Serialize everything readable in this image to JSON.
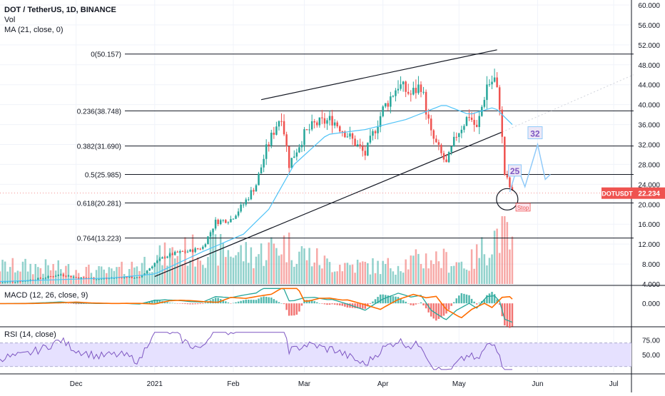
{
  "header": {
    "title": "DOT / TetherUS, 1D, BINANCE",
    "volume_label": "Vol",
    "ma_label": "MA (21, close, 0)"
  },
  "macd_label": "MACD (12, 26, close, 9)",
  "rsi_label": "RSI (14, close)",
  "price_tag": {
    "symbol": "DOTUSDT",
    "price": "22.234"
  },
  "colors": {
    "up": "#26a69a",
    "down": "#ef5350",
    "ma": "#4fc3f7",
    "macd": "#26a69a",
    "signal": "#ff6d00",
    "rsi": "#7e57c2",
    "rsi_band": "#e6e1ff",
    "projection": "#90caf9",
    "stop": "#ef5350"
  },
  "chart_data": [
    {
      "type": "candlestick",
      "title": "DOT / TetherUS, 1D, BINANCE",
      "y_axis_ticks": [
        "60.000",
        "56.000",
        "52.000",
        "48.000",
        "44.000",
        "40.000",
        "36.000",
        "32.000",
        "28.000",
        "24.000",
        "20.000",
        "16.000",
        "12.000",
        "8.000",
        "4.000"
      ],
      "ylim": [
        4,
        60
      ],
      "x_axis_ticks": [
        "Dec",
        "2021",
        "Feb",
        "Mar",
        "Apr",
        "May",
        "Jun",
        "Jul"
      ],
      "x_tick_dates": [
        "2020-12-01",
        "2021-01-01",
        "2021-02-01",
        "2021-03-01",
        "2021-04-01",
        "2021-05-01",
        "2021-06-01",
        "2021-07-01"
      ],
      "xlim": [
        "2020-11-01",
        "2021-07-08"
      ],
      "fib_levels": [
        {
          "label": "0(50.157)",
          "value": 50.157
        },
        {
          "label": "0.236(38.748)",
          "value": 38.748
        },
        {
          "label": "0.382(31.690)",
          "value": 31.69
        },
        {
          "label": "0.5(25.985)",
          "value": 25.985
        },
        {
          "label": "0.618(20.281)",
          "value": 20.281
        },
        {
          "label": "0.764(13.223)",
          "value": 13.223
        }
      ],
      "close_series": [
        [
          "2020-11-01",
          4.3
        ],
        [
          "2020-11-10",
          4.6
        ],
        [
          "2020-11-18",
          5.2
        ],
        [
          "2020-11-25",
          5.9
        ],
        [
          "2020-12-01",
          5.3
        ],
        [
          "2020-12-10",
          5.0
        ],
        [
          "2020-12-20",
          5.4
        ],
        [
          "2020-12-26",
          5.2
        ],
        [
          "2021-01-01",
          8.2
        ],
        [
          "2021-01-05",
          9.5
        ],
        [
          "2021-01-10",
          10.3
        ],
        [
          "2021-01-15",
          10.6
        ],
        [
          "2021-01-20",
          11.4
        ],
        [
          "2021-01-25",
          16.5
        ],
        [
          "2021-01-31",
          17.0
        ],
        [
          "2021-02-05",
          20.0
        ],
        [
          "2021-02-10",
          24.0
        ],
        [
          "2021-02-14",
          31.0
        ],
        [
          "2021-02-18",
          36.0
        ],
        [
          "2021-02-20",
          38.0
        ],
        [
          "2021-02-23",
          28.0
        ],
        [
          "2021-03-01",
          34.0
        ],
        [
          "2021-03-05",
          36.0
        ],
        [
          "2021-03-12",
          37.0
        ],
        [
          "2021-03-18",
          34.0
        ],
        [
          "2021-03-25",
          30.0
        ],
        [
          "2021-03-28",
          34.0
        ],
        [
          "2021-04-01",
          39.0
        ],
        [
          "2021-04-07",
          44.0
        ],
        [
          "2021-04-12",
          42.0
        ],
        [
          "2021-04-16",
          44.0
        ],
        [
          "2021-04-20",
          34.0
        ],
        [
          "2021-04-26",
          28.0
        ],
        [
          "2021-04-30",
          34.0
        ],
        [
          "2021-05-05",
          38.0
        ],
        [
          "2021-05-08",
          35.0
        ],
        [
          "2021-05-12",
          44.0
        ],
        [
          "2021-05-15",
          45.0
        ],
        [
          "2021-05-17",
          40.0
        ],
        [
          "2021-05-19",
          26.0
        ],
        [
          "2021-05-22",
          22.234
        ]
      ],
      "ma21_series": [
        [
          "2020-11-01",
          4.5
        ],
        [
          "2020-12-15",
          5.2
        ],
        [
          "2021-01-01",
          6.0
        ],
        [
          "2021-01-20",
          10.5
        ],
        [
          "2021-02-05",
          14.0
        ],
        [
          "2021-02-15",
          19.0
        ],
        [
          "2021-02-25",
          28.0
        ],
        [
          "2021-03-10",
          34.0
        ],
        [
          "2021-03-25",
          35.0
        ],
        [
          "2021-04-10",
          37.0
        ],
        [
          "2021-04-25",
          40.0
        ],
        [
          "2021-05-05",
          38.0
        ],
        [
          "2021-05-15",
          39.5
        ],
        [
          "2021-05-22",
          36.0
        ]
      ],
      "volume_series": [
        [
          "2020-11-15",
          0.3
        ],
        [
          "2020-12-15",
          0.2
        ],
        [
          "2021-01-10",
          0.55
        ],
        [
          "2021-01-25",
          0.6
        ],
        [
          "2021-02-10",
          0.5
        ],
        [
          "2021-02-20",
          0.7
        ],
        [
          "2021-03-10",
          0.35
        ],
        [
          "2021-04-01",
          0.3
        ],
        [
          "2021-04-20",
          0.45
        ],
        [
          "2021-05-05",
          0.35
        ],
        [
          "2021-05-19",
          1.0
        ],
        [
          "2021-05-21",
          0.65
        ]
      ],
      "annotations": [
        "25",
        "32",
        "Stop"
      ]
    },
    {
      "type": "line",
      "title": "MACD (12, 26, close, 9)",
      "y_axis_ticks": [
        "0.000"
      ],
      "ylim": [
        -4,
        3
      ]
    },
    {
      "type": "line",
      "title": "RSI (14, close)",
      "y_axis_ticks": [
        "75.00",
        "50.00"
      ],
      "ylim": [
        20,
        95
      ],
      "band": [
        30,
        70
      ]
    }
  ]
}
